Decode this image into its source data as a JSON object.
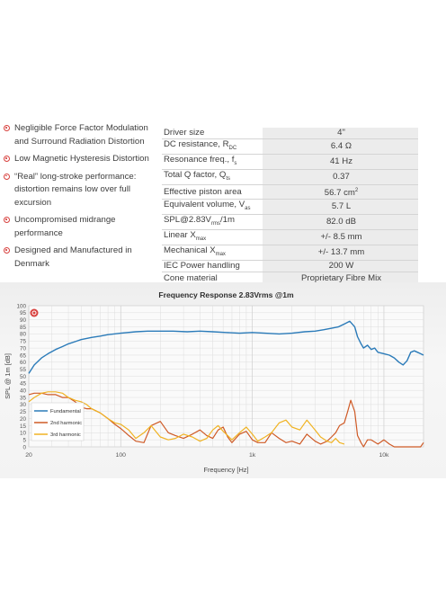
{
  "features": [
    "Negligible Force Factor Modulation and Surround Radiation Distortion",
    "Low Magnetic Hysteresis Distortion",
    "“Real” long-stroke performance: distortion remains low over full excursion",
    "Uncompromised midrange performance",
    "Designed and Manufactured in Denmark"
  ],
  "specs": [
    {
      "label": "Driver size",
      "sub": "",
      "suffix": "",
      "value": "4\"",
      "vsup": ""
    },
    {
      "label": "DC resistance, R",
      "sub": "DC",
      "suffix": "",
      "value": "6.4 Ω",
      "vsup": ""
    },
    {
      "label": "Resonance freq., f",
      "sub": "s",
      "suffix": "",
      "value": "41 Hz",
      "vsup": ""
    },
    {
      "label": "Total Q factor, Q",
      "sub": "ts",
      "suffix": "",
      "value": "0.37",
      "vsup": ""
    },
    {
      "label": "Effective piston area",
      "sub": "",
      "suffix": "",
      "value": "56.7 cm",
      "vsup": "2"
    },
    {
      "label": "Equivalent volume, V",
      "sub": "as",
      "suffix": "",
      "value": "5.7 L",
      "vsup": ""
    },
    {
      "label": "SPL@2.83V",
      "sub": "rms",
      "suffix": "/1m",
      "value": "82.0 dB",
      "vsup": ""
    },
    {
      "label": "Linear X",
      "sub": "max",
      "suffix": "",
      "value": "+/- 8.5 mm",
      "vsup": ""
    },
    {
      "label": "Mechanical X",
      "sub": "max",
      "suffix": "",
      "value": "+/- 13.7 mm",
      "vsup": ""
    },
    {
      "label": "IEC Power handling",
      "sub": "",
      "suffix": "",
      "value": "200 W",
      "vsup": ""
    },
    {
      "label": "Cone material",
      "sub": "",
      "suffix": "",
      "value": "Proprietary Fibre Mix",
      "vsup": ""
    }
  ],
  "colors": {
    "fundamental": "#2b7bb9",
    "harmonic2": "#cf5a26",
    "harmonic3": "#f0b323",
    "bullet": "#d8423f"
  },
  "chart_data": {
    "type": "line",
    "title": "Frequency Response 2.83Vrms @1m",
    "xlabel": "Frequency [Hz]",
    "ylabel": "SPL @ 1m [dB]",
    "xscale": "log",
    "xlim": [
      20,
      20000
    ],
    "ylim": [
      0,
      100
    ],
    "xticks": [
      {
        "v": 20,
        "label": "20"
      },
      {
        "v": 100,
        "label": "100"
      },
      {
        "v": 1000,
        "label": "1k"
      },
      {
        "v": 10000,
        "label": "10k"
      }
    ],
    "yticks": [
      0,
      5,
      10,
      15,
      20,
      25,
      30,
      35,
      40,
      45,
      50,
      55,
      60,
      65,
      70,
      75,
      80,
      85,
      90,
      95,
      100
    ],
    "grid": true,
    "legend_position": "bottom-left",
    "series": [
      {
        "name": "Fundamental",
        "color": "#2b7bb9",
        "x": [
          20,
          22,
          25,
          28,
          32,
          36,
          40,
          45,
          50,
          60,
          70,
          80,
          100,
          130,
          160,
          200,
          250,
          320,
          400,
          500,
          630,
          800,
          1000,
          1250,
          1600,
          2000,
          2500,
          3000,
          3500,
          4000,
          4500,
          5000,
          5500,
          6000,
          6300,
          6700,
          7000,
          7500,
          8000,
          8500,
          9000,
          10000,
          11000,
          12000,
          13000,
          14000,
          15000,
          16000,
          17000,
          18000,
          19000,
          20000
        ],
        "y": [
          52,
          58,
          63,
          66,
          69,
          71,
          73,
          74.5,
          76,
          77.5,
          78.5,
          79.5,
          80.5,
          81.5,
          82,
          82,
          82,
          81.5,
          82,
          81.5,
          81,
          80.5,
          81,
          80.5,
          80,
          80.5,
          81.5,
          82,
          83,
          84,
          85,
          87,
          89,
          85,
          78,
          73,
          70,
          72,
          69,
          70,
          67,
          66,
          65,
          63,
          60,
          58,
          61,
          67,
          68,
          67,
          66,
          65
        ]
      },
      {
        "name": "2nd harmonic",
        "color": "#cf5a26",
        "x": [
          20,
          22,
          25,
          28,
          32,
          36,
          40,
          45,
          50,
          55,
          60,
          70,
          80,
          90,
          100,
          115,
          130,
          150,
          170,
          200,
          230,
          260,
          300,
          350,
          400,
          450,
          500,
          550,
          600,
          650,
          700,
          800,
          900,
          1000,
          1100,
          1250,
          1400,
          1600,
          1800,
          2000,
          2300,
          2600,
          3000,
          3300,
          3700,
          4000,
          4300,
          4600,
          5000,
          5300,
          5600,
          6000,
          6300,
          6700,
          7000,
          7500,
          8000,
          9000,
          10000,
          11000,
          12000,
          13000,
          14000,
          15000,
          16000,
          17000,
          18000,
          19000,
          20000
        ],
        "y": [
          37,
          38,
          38,
          37,
          37,
          35,
          35,
          32,
          28,
          27,
          27,
          24,
          20,
          16,
          13,
          8,
          4,
          3,
          15,
          18,
          10,
          8,
          6,
          9,
          12,
          8,
          6,
          12,
          14,
          7,
          3,
          9,
          11,
          5,
          3,
          3,
          10,
          6,
          3,
          4,
          2,
          9,
          4,
          2,
          4,
          7,
          10,
          15,
          17,
          25,
          33,
          25,
          8,
          3,
          0,
          5,
          5,
          2,
          5,
          2,
          0,
          0,
          0,
          0,
          0,
          0,
          0,
          0,
          3
        ]
      },
      {
        "name": "3rd harmonic",
        "color": "#f0b323",
        "x": [
          20,
          22,
          25,
          28,
          32,
          36,
          40,
          45,
          50,
          55,
          60,
          70,
          80,
          90,
          100,
          115,
          130,
          150,
          170,
          200,
          230,
          260,
          300,
          350,
          400,
          450,
          500,
          550,
          600,
          650,
          700,
          800,
          900,
          1000,
          1100,
          1250,
          1400,
          1600,
          1800,
          2000,
          2300,
          2600,
          3000,
          3300,
          3700,
          4000,
          4300,
          4600,
          5000
        ],
        "y": [
          32,
          35,
          38,
          39,
          39,
          38,
          35,
          33,
          32,
          30,
          27,
          24,
          20,
          17,
          16,
          12,
          6,
          10,
          15,
          7,
          5,
          6,
          9,
          7,
          4,
          6,
          12,
          15,
          11,
          8,
          5,
          10,
          14,
          9,
          4,
          7,
          10,
          17,
          19,
          14,
          12,
          19,
          12,
          7,
          4,
          3,
          6,
          3,
          2
        ]
      }
    ]
  }
}
